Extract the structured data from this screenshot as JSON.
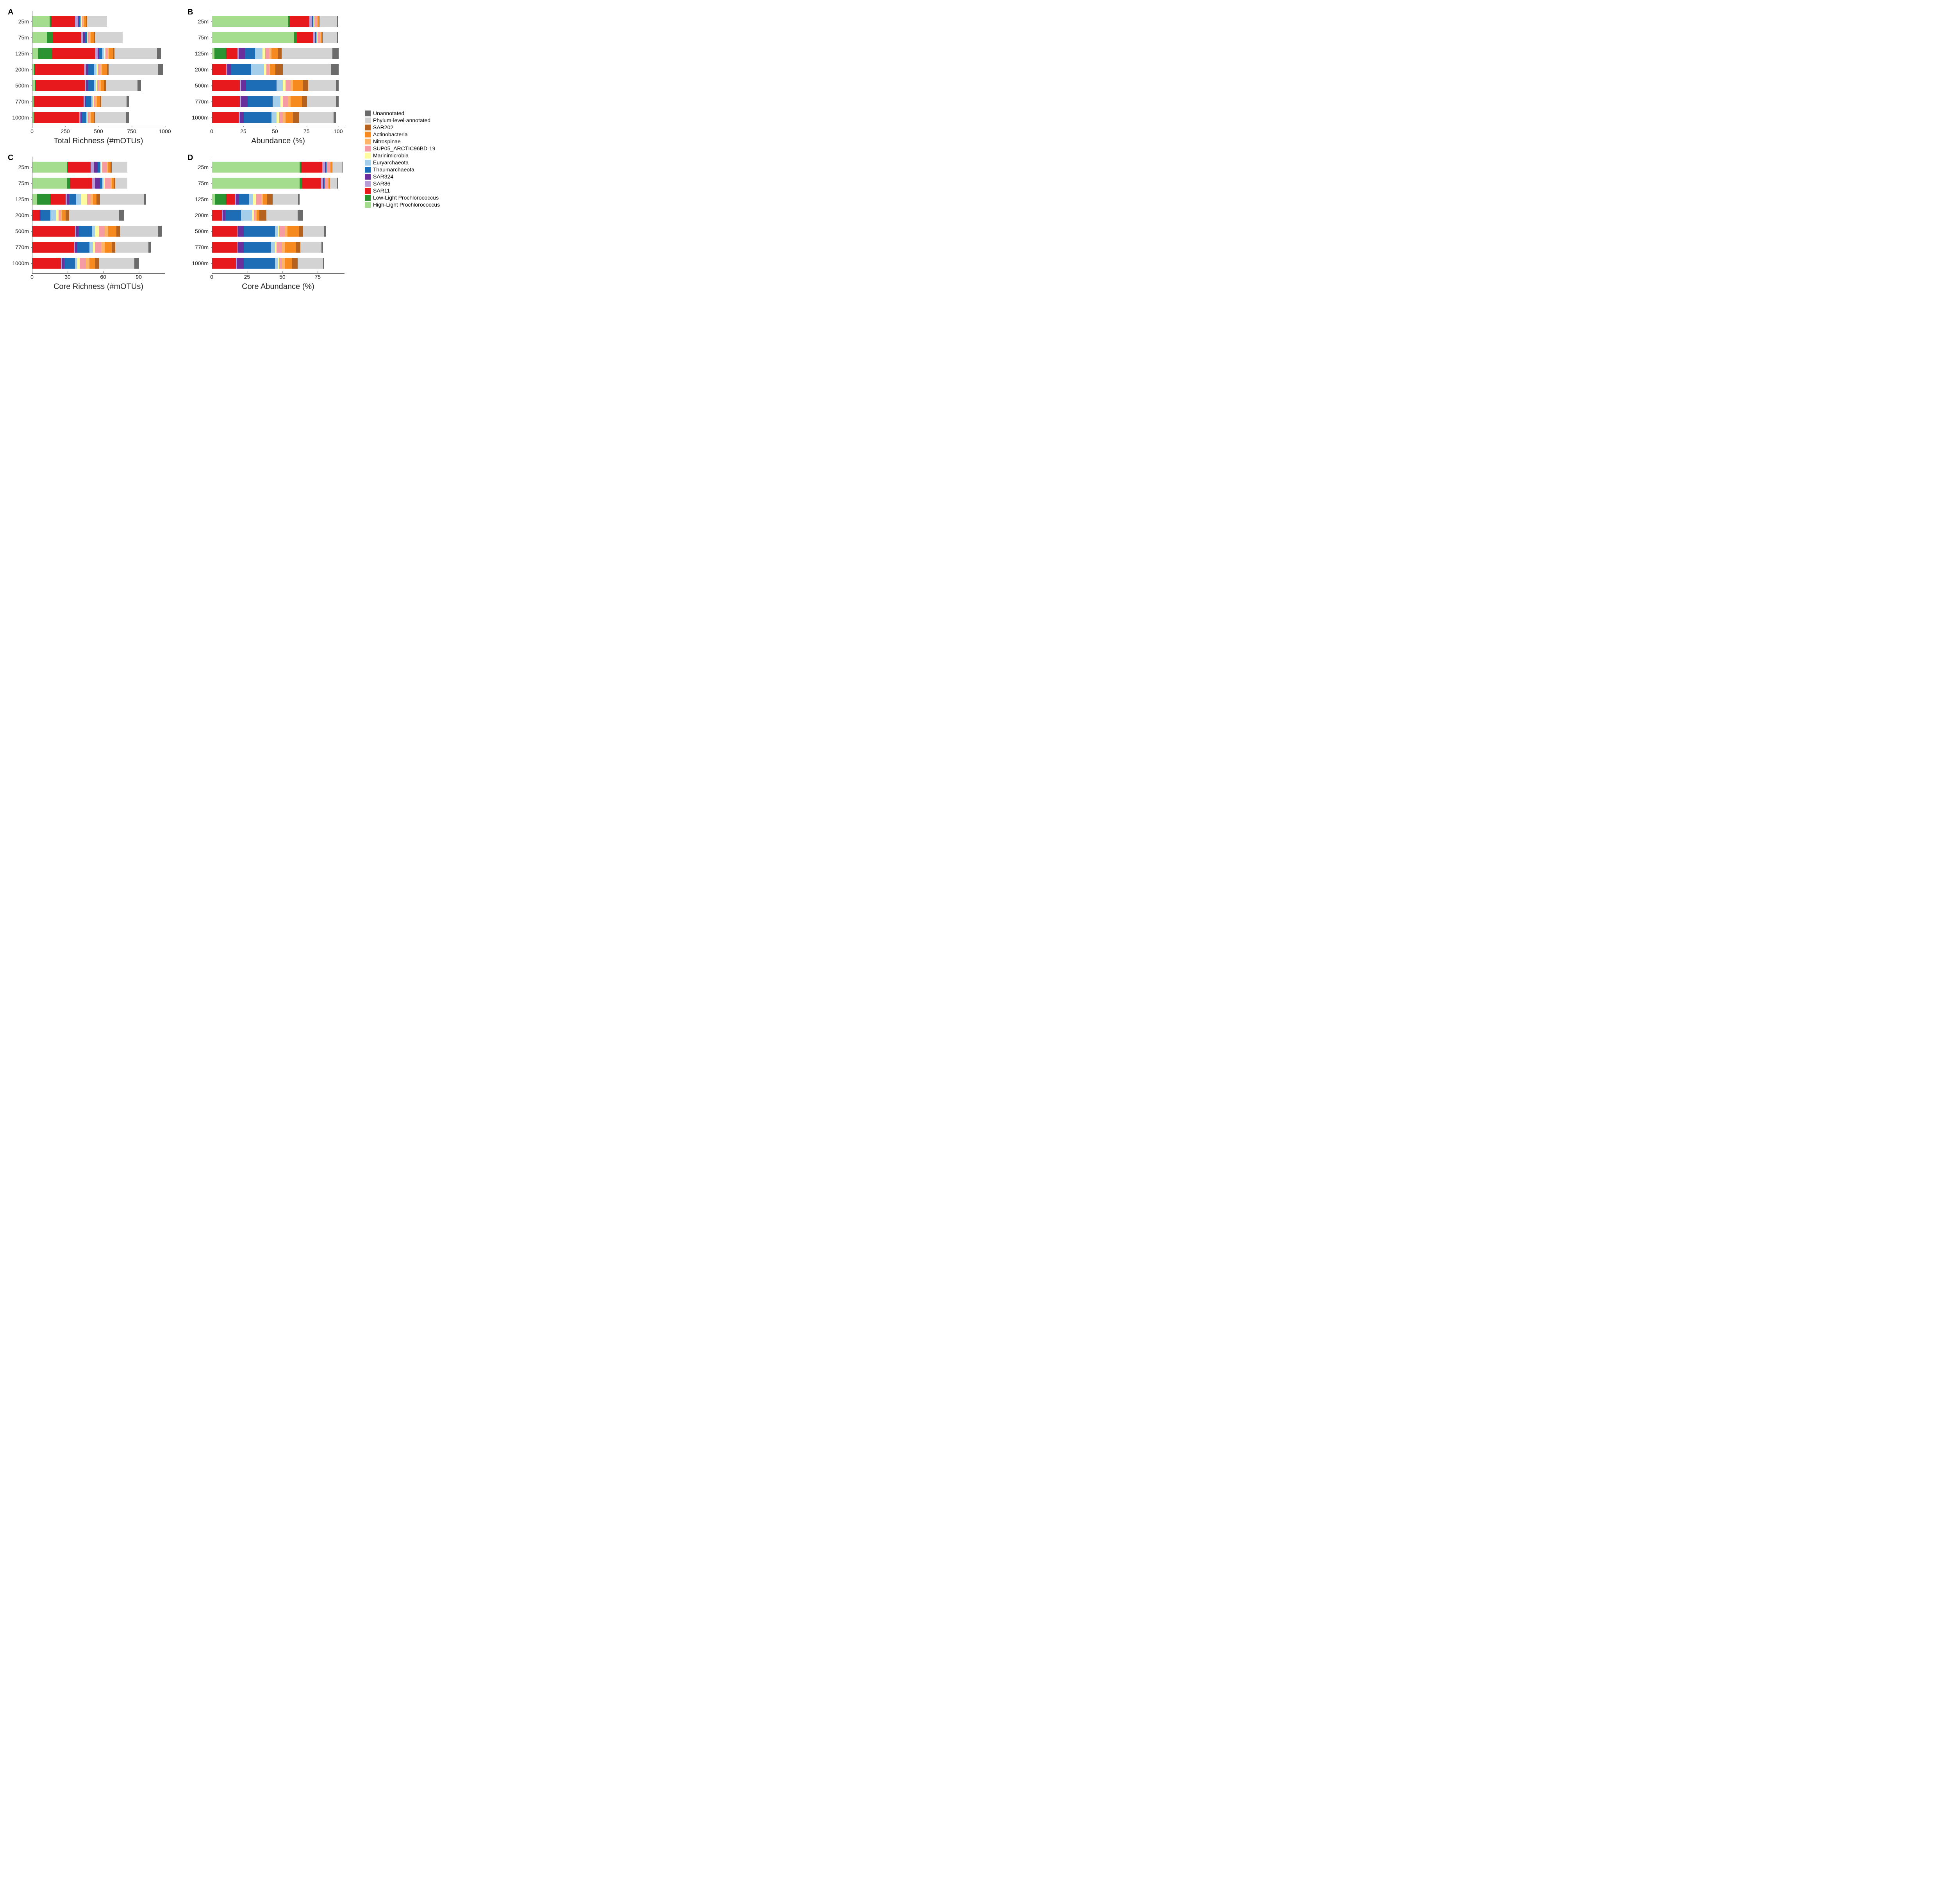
{
  "colors": {
    "Unannotated": "#6b6b6b",
    "Phylum-level-annotated": "#d3d3d3",
    "SAR202": "#b4621e",
    "Actinobacteria": "#f68a1f",
    "Nitrospinae": "#fbb469",
    "SUP05_ARCTIC96BD-19": "#f49ba3",
    "Marinimicrobia": "#fdfca0",
    "Euryarchaeota": "#a4cee9",
    "Thaumarchaeota": "#1c6db5",
    "SAR324": "#6a2f9a",
    "SAR86": "#b79cd6",
    "SAR11": "#e8191c",
    "Low-Light Prochlorococcus": "#2c9333",
    "High-Light Prochlorococcus": "#a5dd8e"
  },
  "stack_order": [
    "High-Light Prochlorococcus",
    "Low-Light Prochlorococcus",
    "SAR11",
    "SAR86",
    "SAR324",
    "Thaumarchaeota",
    "Euryarchaeota",
    "Marinimicrobia",
    "SUP05_ARCTIC96BD-19",
    "Nitrospinae",
    "Actinobacteria",
    "SAR202",
    "Phylum-level-annotated",
    "Unannotated"
  ],
  "legend_order": [
    "Unannotated",
    "Phylum-level-annotated",
    "SAR202",
    "Actinobacteria",
    "Nitrospinae",
    "SUP05_ARCTIC96BD-19",
    "Marinimicrobia",
    "Euryarchaeota",
    "Thaumarchaeota",
    "SAR324",
    "SAR86",
    "SAR11",
    "Low-Light Prochlorococcus",
    "High-Light Prochlorococcus"
  ],
  "y_categories": [
    "25m",
    "75m",
    "125m",
    "200m",
    "500m",
    "770m",
    "1000m"
  ],
  "panels": {
    "A": {
      "letter": "A",
      "xlabel": "Total Richness (#mOTUs)",
      "xmax": 1000,
      "xticks": [
        0,
        250,
        500,
        750,
        1000
      ],
      "data": {
        "25m": {
          "High-Light Prochlorococcus": 130,
          "Low-Light Prochlorococcus": 10,
          "SAR11": 180,
          "SAR86": 20,
          "SAR324": 8,
          "Thaumarchaeota": 15,
          "Euryarchaeota": 6,
          "Marinimicrobia": 4,
          "SUP05_ARCTIC96BD-19": 8,
          "Nitrospinae": 6,
          "Actinobacteria": 20,
          "SAR202": 5,
          "Phylum-level-annotated": 150,
          "Unannotated": 0
        },
        "75m": {
          "High-Light Prochlorococcus": 110,
          "Low-Light Prochlorococcus": 45,
          "SAR11": 210,
          "SAR86": 18,
          "SAR324": 10,
          "Thaumarchaeota": 15,
          "Euryarchaeota": 8,
          "Marinimicrobia": 5,
          "SUP05_ARCTIC96BD-19": 10,
          "Nitrospinae": 8,
          "Actinobacteria": 25,
          "SAR202": 6,
          "Phylum-level-annotated": 210,
          "Unannotated": 0
        },
        "125m": {
          "High-Light Prochlorococcus": 45,
          "Low-Light Prochlorococcus": 105,
          "SAR11": 320,
          "SAR86": 20,
          "SAR324": 12,
          "Thaumarchaeota": 25,
          "Euryarchaeota": 15,
          "Marinimicrobia": 8,
          "SUP05_ARCTIC96BD-19": 15,
          "Nitrospinae": 12,
          "Actinobacteria": 30,
          "SAR202": 10,
          "Phylum-level-annotated": 320,
          "Unannotated": 30
        },
        "200m": {
          "High-Light Prochlorococcus": 12,
          "Low-Light Prochlorococcus": 6,
          "SAR11": 370,
          "SAR86": 18,
          "SAR324": 14,
          "Thaumarchaeota": 45,
          "Euryarchaeota": 18,
          "Marinimicrobia": 10,
          "SUP05_ARCTIC96BD-19": 18,
          "Nitrospinae": 15,
          "Actinobacteria": 35,
          "SAR202": 12,
          "Phylum-level-annotated": 370,
          "Unannotated": 40
        },
        "500m": {
          "High-Light Prochlorococcus": 20,
          "Low-Light Prochlorococcus": 5,
          "SAR11": 370,
          "SAR86": 12,
          "SAR324": 12,
          "Thaumarchaeota": 45,
          "Euryarchaeota": 15,
          "Marinimicrobia": 8,
          "SUP05_ARCTIC96BD-19": 15,
          "Nitrospinae": 12,
          "Actinobacteria": 28,
          "SAR202": 10,
          "Phylum-level-annotated": 240,
          "Unannotated": 25
        },
        "770m": {
          "High-Light Prochlorococcus": 10,
          "Low-Light Prochlorococcus": 4,
          "SAR11": 370,
          "SAR86": 10,
          "SAR324": 10,
          "Thaumarchaeota": 40,
          "Euryarchaeota": 12,
          "Marinimicrobia": 7,
          "SUP05_ARCTIC96BD-19": 12,
          "Nitrospinae": 10,
          "Actinobacteria": 25,
          "SAR202": 8,
          "Phylum-level-annotated": 190,
          "Unannotated": 20
        },
        "1000m": {
          "High-Light Prochlorococcus": 10,
          "Low-Light Prochlorococcus": 4,
          "SAR11": 340,
          "SAR86": 8,
          "SAR324": 8,
          "Thaumarchaeota": 35,
          "Euryarchaeota": 10,
          "Marinimicrobia": 6,
          "SUP05_ARCTIC96BD-19": 10,
          "Nitrospinae": 10,
          "Actinobacteria": 22,
          "SAR202": 8,
          "Phylum-level-annotated": 235,
          "Unannotated": 20
        }
      }
    },
    "B": {
      "letter": "B",
      "xlabel": "Abundance (%)",
      "xmax": 105,
      "xticks": [
        0,
        25,
        50,
        75,
        100
      ],
      "data": {
        "25m": {
          "High-Light Prochlorococcus": 60,
          "Low-Light Prochlorococcus": 1,
          "SAR11": 16,
          "SAR86": 2,
          "SAR324": 0.5,
          "Thaumarchaeota": 0.5,
          "Euryarchaeota": 0.5,
          "Marinimicrobia": 0.3,
          "SUP05_ARCTIC96BD-19": 2,
          "Nitrospinae": 0.5,
          "Actinobacteria": 1,
          "SAR202": 0.5,
          "Phylum-level-annotated": 14,
          "Unannotated": 0.7
        },
        "75m": {
          "High-Light Prochlorococcus": 65,
          "Low-Light Prochlorococcus": 2,
          "SAR11": 13,
          "SAR86": 1.5,
          "SAR324": 0.5,
          "Thaumarchaeota": 0.5,
          "Euryarchaeota": 0.5,
          "Marinimicrobia": 0.3,
          "SUP05_ARCTIC96BD-19": 2,
          "Nitrospinae": 0.5,
          "Actinobacteria": 1,
          "SAR202": 0.5,
          "Phylum-level-annotated": 11.5,
          "Unannotated": 0.7
        },
        "125m": {
          "High-Light Prochlorococcus": 2,
          "Low-Light Prochlorococcus": 9,
          "SAR11": 9,
          "SAR86": 1,
          "SAR324": 5,
          "Thaumarchaeota": 8,
          "Euryarchaeota": 6,
          "Marinimicrobia": 2,
          "SUP05_ARCTIC96BD-19": 3,
          "Nitrospinae": 2,
          "Actinobacteria": 5,
          "SAR202": 3,
          "Phylum-level-annotated": 40,
          "Unannotated": 5
        },
        "200m": {
          "High-Light Prochlorococcus": 0,
          "Low-Light Prochlorococcus": 0,
          "SAR11": 11,
          "SAR86": 1,
          "SAR324": 3,
          "Thaumarchaeota": 16,
          "Euryarchaeota": 10,
          "Marinimicrobia": 2,
          "SUP05_ARCTIC96BD-19": 2,
          "Nitrospinae": 1,
          "Actinobacteria": 4,
          "SAR202": 6,
          "Phylum-level-annotated": 38,
          "Unannotated": 6
        },
        "500m": {
          "High-Light Prochlorococcus": 0,
          "Low-Light Prochlorococcus": 0,
          "SAR11": 22,
          "SAR86": 1,
          "SAR324": 4,
          "Thaumarchaeota": 24,
          "Euryarchaeota": 5,
          "Marinimicrobia": 2,
          "SUP05_ARCTIC96BD-19": 4,
          "Nitrospinae": 2,
          "Actinobacteria": 8,
          "SAR202": 4,
          "Phylum-level-annotated": 22,
          "Unannotated": 2
        },
        "770m": {
          "High-Light Prochlorococcus": 0,
          "Low-Light Prochlorococcus": 0,
          "SAR11": 22,
          "SAR86": 1,
          "SAR324": 5,
          "Thaumarchaeota": 20,
          "Euryarchaeota": 6,
          "Marinimicrobia": 2,
          "SUP05_ARCTIC96BD-19": 4,
          "Nitrospinae": 2,
          "Actinobacteria": 9,
          "SAR202": 4,
          "Phylum-level-annotated": 23,
          "Unannotated": 2
        },
        "1000m": {
          "High-Light Prochlorococcus": 0,
          "Low-Light Prochlorococcus": 0,
          "SAR11": 21,
          "SAR86": 1,
          "SAR324": 3,
          "Thaumarchaeota": 22,
          "Euryarchaeota": 4,
          "Marinimicrobia": 2,
          "SUP05_ARCTIC96BD-19": 3,
          "Nitrospinae": 2,
          "Actinobacteria": 6,
          "SAR202": 5,
          "Phylum-level-annotated": 27,
          "Unannotated": 2
        }
      }
    },
    "C": {
      "letter": "C",
      "xlabel": "Core Richness (#mOTUs)",
      "xmax": 112,
      "xticks": [
        0,
        30,
        60,
        90
      ],
      "data": {
        "25m": {
          "High-Light Prochlorococcus": 29,
          "Low-Light Prochlorococcus": 1,
          "SAR11": 19,
          "SAR86": 3,
          "SAR324": 3,
          "Thaumarchaeota": 2,
          "Euryarchaeota": 1,
          "Marinimicrobia": 1,
          "SUP05_ARCTIC96BD-19": 4,
          "Nitrospinae": 1,
          "Actinobacteria": 2,
          "SAR202": 1,
          "Phylum-level-annotated": 13,
          "Unannotated": 0
        },
        "75m": {
          "High-Light Prochlorococcus": 29,
          "Low-Light Prochlorococcus": 3,
          "SAR11": 18,
          "SAR86": 3,
          "SAR324": 4,
          "Thaumarchaeota": 2,
          "Euryarchaeota": 1,
          "Marinimicrobia": 1,
          "SUP05_ARCTIC96BD-19": 5,
          "Nitrospinae": 1,
          "Actinobacteria": 2,
          "SAR202": 1,
          "Phylum-level-annotated": 10,
          "Unannotated": 0
        },
        "125m": {
          "High-Light Prochlorococcus": 4,
          "Low-Light Prochlorococcus": 11,
          "SAR11": 13,
          "SAR86": 1,
          "SAR324": 2,
          "Thaumarchaeota": 6,
          "Euryarchaeota": 4,
          "Marinimicrobia": 5,
          "SUP05_ARCTIC96BD-19": 3,
          "Nitrospinae": 2,
          "Actinobacteria": 3,
          "SAR202": 3,
          "Phylum-level-annotated": 37,
          "Unannotated": 2
        },
        "200m": {
          "High-Light Prochlorococcus": 0,
          "Low-Light Prochlorococcus": 0,
          "SAR11": 6,
          "SAR86": 0,
          "SAR324": 1,
          "Thaumarchaeota": 8,
          "Euryarchaeota": 5,
          "Marinimicrobia": 2,
          "SUP05_ARCTIC96BD-19": 2,
          "Nitrospinae": 1,
          "Actinobacteria": 3,
          "SAR202": 3,
          "Phylum-level-annotated": 42,
          "Unannotated": 4
        },
        "500m": {
          "High-Light Prochlorococcus": 0,
          "Low-Light Prochlorococcus": 0,
          "SAR11": 36,
          "SAR86": 1,
          "SAR324": 2,
          "Thaumarchaeota": 11,
          "Euryarchaeota": 3,
          "Marinimicrobia": 3,
          "SUP05_ARCTIC96BD-19": 5,
          "Nitrospinae": 3,
          "Actinobacteria": 7,
          "SAR202": 3,
          "Phylum-level-annotated": 32,
          "Unannotated": 3
        },
        "770m": {
          "High-Light Prochlorococcus": 0,
          "Low-Light Prochlorococcus": 0,
          "SAR11": 35,
          "SAR86": 1,
          "SAR324": 2,
          "Thaumarchaeota": 10,
          "Euryarchaeota": 3,
          "Marinimicrobia": 2,
          "SUP05_ARCTIC96BD-19": 5,
          "Nitrospinae": 3,
          "Actinobacteria": 6,
          "SAR202": 3,
          "Phylum-level-annotated": 28,
          "Unannotated": 2
        },
        "1000m": {
          "High-Light Prochlorococcus": 0,
          "Low-Light Prochlorococcus": 0,
          "SAR11": 24,
          "SAR86": 1,
          "SAR324": 2,
          "Thaumarchaeota": 9,
          "Euryarchaeota": 2,
          "Marinimicrobia": 2,
          "SUP05_ARCTIC96BD-19": 5,
          "Nitrospinae": 3,
          "Actinobacteria": 5,
          "SAR202": 3,
          "Phylum-level-annotated": 30,
          "Unannotated": 4
        }
      }
    },
    "D": {
      "letter": "D",
      "xlabel": "Core Abundance (%)",
      "xmax": 94,
      "xticks": [
        0,
        25,
        50,
        75
      ],
      "data": {
        "25m": {
          "High-Light Prochlorococcus": 62,
          "Low-Light Prochlorococcus": 1,
          "SAR11": 15,
          "SAR86": 2,
          "SAR324": 0.5,
          "Thaumarchaeota": 0.5,
          "Euryarchaeota": 0.3,
          "Marinimicrobia": 0.2,
          "SUP05_ARCTIC96BD-19": 2,
          "Nitrospinae": 0.3,
          "Actinobacteria": 1,
          "SAR202": 0.3,
          "Phylum-level-annotated": 7,
          "Unannotated": 0.4
        },
        "75m": {
          "High-Light Prochlorococcus": 62,
          "Low-Light Prochlorococcus": 2,
          "SAR11": 13,
          "SAR86": 1.5,
          "SAR324": 0.5,
          "Thaumarchaeota": 0.5,
          "Euryarchaeota": 0.3,
          "Marinimicrobia": 0.2,
          "SUP05_ARCTIC96BD-19": 2,
          "Nitrospinae": 0.3,
          "Actinobacteria": 1,
          "SAR202": 0.3,
          "Phylum-level-annotated": 5,
          "Unannotated": 0.4
        },
        "125m": {
          "High-Light Prochlorococcus": 2,
          "Low-Light Prochlorococcus": 8,
          "SAR11": 6,
          "SAR86": 1,
          "SAR324": 2,
          "Thaumarchaeota": 7,
          "Euryarchaeota": 3,
          "Marinimicrobia": 2,
          "SUP05_ARCTIC96BD-19": 4,
          "Nitrospinae": 1,
          "Actinobacteria": 3,
          "SAR202": 4,
          "Phylum-level-annotated": 18,
          "Unannotated": 1
        },
        "200m": {
          "High-Light Prochlorococcus": 0,
          "Low-Light Prochlorococcus": 0,
          "SAR11": 7,
          "SAR86": 0.5,
          "SAR324": 2,
          "Thaumarchaeota": 11,
          "Euryarchaeota": 8,
          "Marinimicrobia": 1,
          "SUP05_ARCTIC96BD-19": 1,
          "Nitrospinae": 1,
          "Actinobacteria": 2,
          "SAR202": 5,
          "Phylum-level-annotated": 22,
          "Unannotated": 4
        },
        "500m": {
          "High-Light Prochlorococcus": 0,
          "Low-Light Prochlorococcus": 0,
          "SAR11": 18,
          "SAR86": 0.5,
          "SAR324": 4,
          "Thaumarchaeota": 22,
          "Euryarchaeota": 2,
          "Marinimicrobia": 1,
          "SUP05_ARCTIC96BD-19": 4,
          "Nitrospinae": 2,
          "Actinobacteria": 8,
          "SAR202": 3,
          "Phylum-level-annotated": 15,
          "Unannotated": 1
        },
        "770m": {
          "High-Light Prochlorococcus": 0,
          "Low-Light Prochlorococcus": 0,
          "SAR11": 18,
          "SAR86": 0.5,
          "SAR324": 4,
          "Thaumarchaeota": 19,
          "Euryarchaeota": 3,
          "Marinimicrobia": 1,
          "SUP05_ARCTIC96BD-19": 4,
          "Nitrospinae": 2,
          "Actinobacteria": 8,
          "SAR202": 3,
          "Phylum-level-annotated": 15,
          "Unannotated": 1
        },
        "1000m": {
          "High-Light Prochlorococcus": 0,
          "Low-Light Prochlorococcus": 0,
          "SAR11": 17,
          "SAR86": 0.5,
          "SAR324": 5,
          "Thaumarchaeota": 22,
          "Euryarchaeota": 2,
          "Marinimicrobia": 1,
          "SUP05_ARCTIC96BD-19": 2,
          "Nitrospinae": 2,
          "Actinobacteria": 5,
          "SAR202": 4,
          "Phylum-level-annotated": 18,
          "Unannotated": 1
        }
      }
    }
  }
}
